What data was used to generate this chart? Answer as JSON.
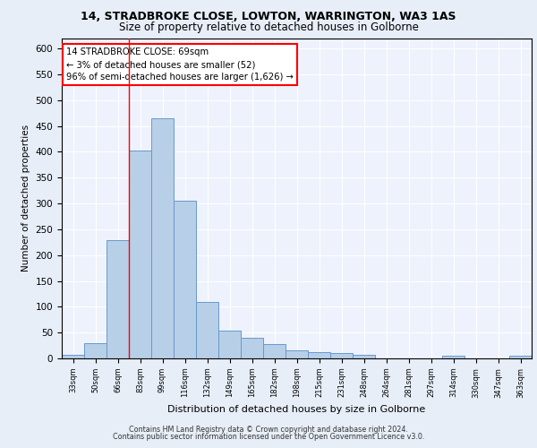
{
  "title_line1": "14, STRADBROKE CLOSE, LOWTON, WARRINGTON, WA3 1AS",
  "title_line2": "Size of property relative to detached houses in Golborne",
  "xlabel": "Distribution of detached houses by size in Golborne",
  "ylabel": "Number of detached properties",
  "footer_line1": "Contains HM Land Registry data © Crown copyright and database right 2024.",
  "footer_line2": "Contains public sector information licensed under the Open Government Licence v3.0.",
  "bar_labels": [
    "33sqm",
    "50sqm",
    "66sqm",
    "83sqm",
    "99sqm",
    "116sqm",
    "132sqm",
    "149sqm",
    "165sqm",
    "182sqm",
    "198sqm",
    "215sqm",
    "231sqm",
    "248sqm",
    "264sqm",
    "281sqm",
    "297sqm",
    "314sqm",
    "330sqm",
    "347sqm",
    "363sqm"
  ],
  "bar_values": [
    7,
    30,
    229,
    403,
    464,
    306,
    110,
    54,
    40,
    27,
    15,
    13,
    10,
    7,
    0,
    0,
    0,
    5,
    0,
    0,
    5
  ],
  "bar_color": "#b8cfe8",
  "bar_edge_color": "#6699cc",
  "annotation_box_text": "14 STRADBROKE CLOSE: 69sqm\n← 3% of detached houses are smaller (52)\n96% of semi-detached houses are larger (1,626) →",
  "red_line_x": 2.5,
  "ylim": [
    0,
    620
  ],
  "yticks": [
    0,
    50,
    100,
    150,
    200,
    250,
    300,
    350,
    400,
    450,
    500,
    550,
    600
  ],
  "bg_color": "#e8eef8",
  "plot_bg_color": "#eef2fc"
}
